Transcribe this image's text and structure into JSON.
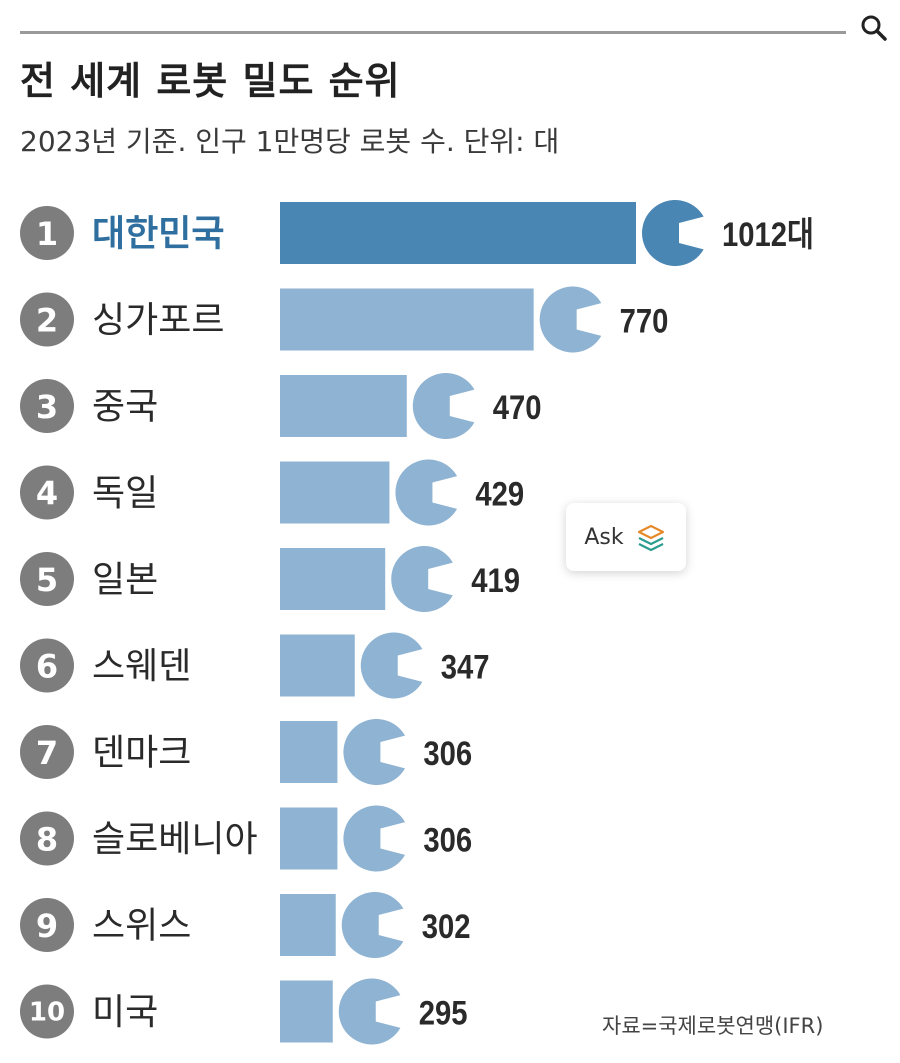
{
  "page": {
    "title": "전 세계 로봇 밀도 순위",
    "subtitle": "2023년 기준. 인구 1만명당 로봇 수. 단위: 대",
    "source": "자료=국제로봇연맹(IFR)",
    "ask_label": "Ask"
  },
  "colors": {
    "highlight": "#4a86b4",
    "bar": "#8fb3d2",
    "highlight_label": "#2e6f9f",
    "label": "#2a2a2a",
    "rank_circle": "#7d7d7d"
  },
  "icons": {
    "search": "search-icon",
    "ask": "layers-icon"
  },
  "chart_data": {
    "type": "bar",
    "orientation": "horizontal",
    "title": "전 세계 로봇 밀도 순위",
    "subtitle": "2023년 기준. 인구 1만명당 로봇 수. 단위: 대",
    "ranks": [
      "1",
      "2",
      "3",
      "4",
      "5",
      "6",
      "7",
      "8",
      "9",
      "10"
    ],
    "categories": [
      "대한민국",
      "싱가포르",
      "중국",
      "독일",
      "일본",
      "스웨덴",
      "덴마크",
      "슬로베니아",
      "스위스",
      "미국"
    ],
    "values": [
      1012,
      770,
      470,
      429,
      419,
      347,
      306,
      306,
      302,
      295
    ],
    "value_labels": [
      "1012대",
      "770",
      "470",
      "429",
      "419",
      "347",
      "306",
      "306",
      "302",
      "295"
    ],
    "highlight_index": 0,
    "xlim": [
      0,
      1012
    ],
    "grid": false,
    "legend": "none"
  }
}
